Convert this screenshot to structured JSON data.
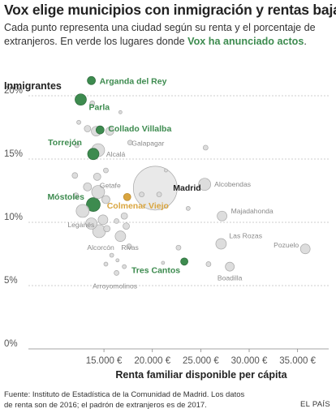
{
  "title": "Vox elige municipios con inmigración y rentas bajas",
  "subtitle_main": "Cada punto representa una ciudad según su renta y el porcentaje de extranjeros. En verde los lugares donde ",
  "subtitle_highlight": "Vox ha anunciado actos",
  "subtitle_end": ".",
  "source": "Fuente: Instituto de Estadística de la Comunidad de Madrid. Los datos de renta son de 2016; el padrón de extranjeros es de 2017.",
  "brand": "EL PAÍS",
  "colors": {
    "vox": "#3d8b4f",
    "highlight": "#d9a53f",
    "other": "#d9d9d9",
    "other_stroke": "#a8a8a8",
    "grid": "#bdbdbd",
    "axis_text": "#555555",
    "label_gray": "#8a8a8a"
  },
  "chart_data": {
    "type": "scatter",
    "title": "Vox elige municipios con inmigración y rentas bajas",
    "xlabel": "Renta familiar disponible per cápita",
    "ylabel": "Inmigrantes",
    "xlim": [
      10000,
      36500
    ],
    "ylim": [
      0,
      22
    ],
    "x_ticks": [
      15000,
      20000,
      25000,
      30000,
      35000
    ],
    "x_tick_labels": [
      "15.000 €",
      "20.000 €",
      "25.000 €",
      "30.000 €",
      "35.000 €"
    ],
    "y_ticks": [
      0,
      5,
      10,
      15,
      20
    ],
    "y_tick_labels": [
      "0%",
      "5%",
      "10%",
      "15%",
      "20%"
    ],
    "grid": "horizontal dashed",
    "encoding": "bubble size = population",
    "points": [
      {
        "label": "Madrid",
        "x": 20300,
        "y": 12.7,
        "r": 27,
        "group": "label_only"
      },
      {
        "label": "Arganda del Rey",
        "x": 13700,
        "y": 21.2,
        "r": 5,
        "group": "vox"
      },
      {
        "label": "Parla",
        "x": 12600,
        "y": 19.7,
        "r": 7,
        "group": "vox"
      },
      {
        "label": "Collado Villalba",
        "x": 14600,
        "y": 17.3,
        "r": 5,
        "group": "vox"
      },
      {
        "label": "Torrejón",
        "x": 13900,
        "y": 15.4,
        "r": 7,
        "group": "vox"
      },
      {
        "label": "Móstoles",
        "x": 13900,
        "y": 11.4,
        "r": 8.5,
        "group": "vox"
      },
      {
        "label": "Tres Cantos",
        "x": 23300,
        "y": 6.9,
        "r": 4.5,
        "group": "vox"
      },
      {
        "label": "Colmenar Viejo",
        "x": 17400,
        "y": 12.0,
        "r": 4.5,
        "group": "highlight"
      },
      {
        "label": "Alcalá",
        "x": 14400,
        "y": 15.7,
        "r": 8,
        "group": "other"
      },
      {
        "label": "Galapagar",
        "x": 17700,
        "y": 16.3,
        "r": 3,
        "group": "other"
      },
      {
        "label": "Getafe",
        "x": 14400,
        "y": 12.4,
        "r": 8,
        "group": "other"
      },
      {
        "label": "Leganés",
        "x": 12800,
        "y": 10.9,
        "r": 8,
        "group": "other"
      },
      {
        "label": "Alcorcón",
        "x": 14500,
        "y": 9.3,
        "r": 8,
        "group": "other"
      },
      {
        "label": "Rivas",
        "x": 16700,
        "y": 8.9,
        "r": 6.5,
        "group": "other"
      },
      {
        "label": "Arroyomolinos",
        "x": 16300,
        "y": 6.0,
        "r": 3,
        "group": "other"
      },
      {
        "label": "Alcobendas",
        "x": 25400,
        "y": 13.0,
        "r": 7.5,
        "group": "other"
      },
      {
        "label": "Majadahonda",
        "x": 27200,
        "y": 10.5,
        "r": 6,
        "group": "other"
      },
      {
        "label": "Las Rozas",
        "x": 27100,
        "y": 8.3,
        "r": 6.5,
        "group": "other"
      },
      {
        "label": "Boadilla",
        "x": 28000,
        "y": 6.5,
        "r": 5.5,
        "group": "other"
      },
      {
        "label": "Pozuelo",
        "x": 35800,
        "y": 7.9,
        "r": 6,
        "group": "other"
      },
      {
        "label": "",
        "x": 12400,
        "y": 17.9,
        "r": 2.5,
        "group": "other"
      },
      {
        "label": "",
        "x": 12200,
        "y": 16.1,
        "r": 3,
        "group": "other"
      },
      {
        "label": "",
        "x": 13300,
        "y": 17.4,
        "r": 4,
        "group": "other"
      },
      {
        "label": "",
        "x": 13800,
        "y": 19.4,
        "r": 3,
        "group": "other"
      },
      {
        "label": "",
        "x": 14200,
        "y": 17.2,
        "r": 6,
        "group": "other"
      },
      {
        "label": "",
        "x": 16700,
        "y": 18.7,
        "r": 2,
        "group": "other"
      },
      {
        "label": "",
        "x": 15600,
        "y": 17.2,
        "r": 5,
        "group": "other"
      },
      {
        "label": "",
        "x": 12000,
        "y": 13.7,
        "r": 3.5,
        "group": "other"
      },
      {
        "label": "",
        "x": 12100,
        "y": 12.1,
        "r": 3.5,
        "group": "other"
      },
      {
        "label": "",
        "x": 14300,
        "y": 13.6,
        "r": 4.5,
        "group": "other"
      },
      {
        "label": "",
        "x": 15200,
        "y": 14.1,
        "r": 3,
        "group": "other"
      },
      {
        "label": "",
        "x": 13300,
        "y": 12.8,
        "r": 5,
        "group": "other"
      },
      {
        "label": "",
        "x": 15200,
        "y": 11.8,
        "r": 5,
        "group": "other"
      },
      {
        "label": "",
        "x": 13700,
        "y": 9.9,
        "r": 7,
        "group": "other"
      },
      {
        "label": "",
        "x": 14900,
        "y": 10.2,
        "r": 6,
        "group": "other"
      },
      {
        "label": "",
        "x": 15300,
        "y": 9.5,
        "r": 4,
        "group": "other"
      },
      {
        "label": "",
        "x": 17100,
        "y": 10.5,
        "r": 4,
        "group": "other"
      },
      {
        "label": "",
        "x": 17300,
        "y": 9.7,
        "r": 4,
        "group": "other"
      },
      {
        "label": "",
        "x": 17600,
        "y": 8.1,
        "r": 3,
        "group": "other"
      },
      {
        "label": "",
        "x": 16300,
        "y": 10.1,
        "r": 3,
        "group": "other"
      },
      {
        "label": "",
        "x": 15800,
        "y": 7.4,
        "r": 2.5,
        "group": "other"
      },
      {
        "label": "",
        "x": 17100,
        "y": 6.5,
        "r": 2.5,
        "group": "other"
      },
      {
        "label": "",
        "x": 16400,
        "y": 7.0,
        "r": 2,
        "group": "other"
      },
      {
        "label": "",
        "x": 15200,
        "y": 6.7,
        "r": 2.5,
        "group": "other"
      },
      {
        "label": "",
        "x": 18900,
        "y": 12.2,
        "r": 3,
        "group": "other"
      },
      {
        "label": "",
        "x": 20700,
        "y": 12.2,
        "r": 3,
        "group": "other"
      },
      {
        "label": "",
        "x": 21400,
        "y": 14.1,
        "r": 2,
        "group": "other"
      },
      {
        "label": "",
        "x": 22700,
        "y": 8.0,
        "r": 3,
        "group": "other"
      },
      {
        "label": "",
        "x": 23700,
        "y": 11.1,
        "r": 2.5,
        "group": "other"
      },
      {
        "label": "",
        "x": 25500,
        "y": 15.9,
        "r": 3,
        "group": "other"
      },
      {
        "label": "",
        "x": 25800,
        "y": 6.7,
        "r": 3,
        "group": "other"
      },
      {
        "label": "",
        "x": 21100,
        "y": 6.8,
        "r": 2,
        "group": "other"
      }
    ]
  }
}
